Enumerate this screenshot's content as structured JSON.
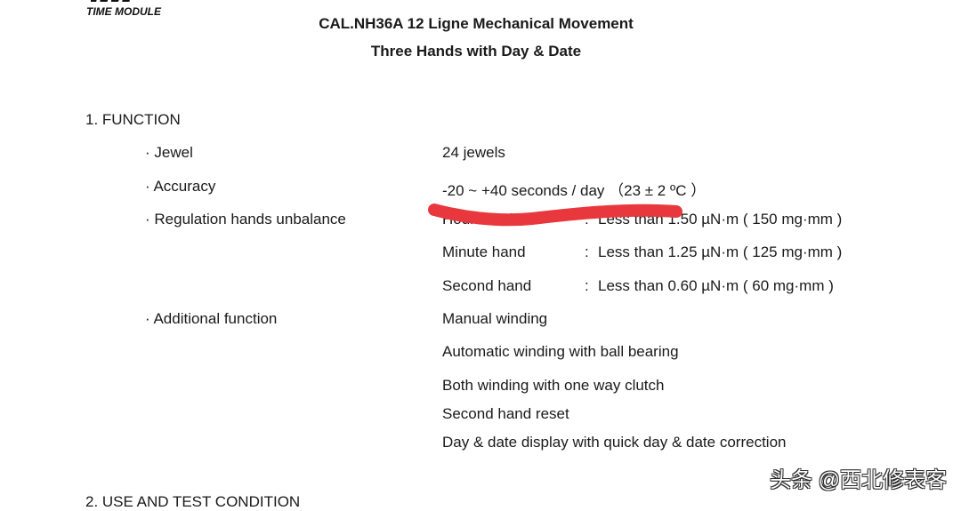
{
  "logo": {
    "text": "TIME MODULE"
  },
  "header": {
    "title": "CAL.NH36A 12 Ligne Mechanical Movement",
    "subtitle": "Three Hands with Day & Date"
  },
  "section1": {
    "heading": "1. FUNCTION",
    "rows": [
      {
        "label": "· Jewel",
        "value": "24 jewels"
      },
      {
        "label": "· Accuracy",
        "value": "-20 ~ +40 seconds / day （23 ± 2 ºC ）"
      },
      {
        "label": "· Regulation hands unbalance"
      },
      {
        "label": "· Additional function"
      }
    ],
    "hands": [
      {
        "name": "Hour hand",
        "sep": ":",
        "value": "Less than 1.50 µN·m ( 150 mg·mm )"
      },
      {
        "name": "Minute hand",
        "sep": ":",
        "value": "Less than 1.25 µN·m ( 125 mg·mm )"
      },
      {
        "name": "Second hand",
        "sep": ":",
        "value": "Less than 0.60 µN·m ( 60 mg·mm )"
      }
    ],
    "functions": [
      "Manual winding",
      "Automatic winding with ball bearing",
      "Both winding with one way clutch",
      "Second hand reset",
      "Day & date display with quick day & date correction"
    ]
  },
  "section2": {
    "heading": "2. USE AND TEST CONDITION"
  },
  "watermark": "头条 @西北修表客",
  "colors": {
    "scribble": "#e8383d"
  }
}
